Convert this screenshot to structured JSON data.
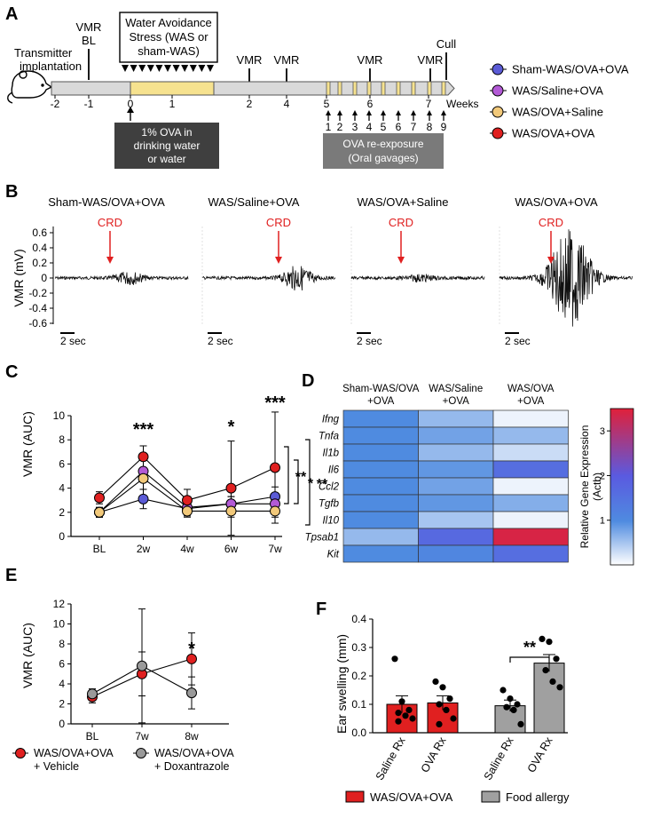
{
  "colors": {
    "sham": "#5b5bd6",
    "saline": "#b35ad6",
    "wassal": "#f2c97a",
    "wasova": "#e02020",
    "vehicle": "#e02020",
    "dox": "#9a9a9a",
    "crd": "#e02020",
    "food": "#a0a0a0",
    "timeline_fill": "#d9d9d9",
    "timeline_ova": "#f6e28f",
    "box_dark": "#3f3f3f",
    "box_grey": "#7a7a7a"
  },
  "panel_labels": {
    "a": "A",
    "b": "B",
    "c": "C",
    "d": "D",
    "e": "E",
    "f": "F"
  },
  "panel_a": {
    "transmitter": [
      "Transmitter",
      "implantation"
    ],
    "vmr_bl": [
      "VMR",
      "BL"
    ],
    "was_box": [
      "Water Avoidance",
      "Stress (WAS or",
      "sham-WAS)"
    ],
    "vmr_marks": [
      {
        "week": 2,
        "label": "VMR"
      },
      {
        "week": 4,
        "label": "VMR"
      },
      {
        "week": 6,
        "label": "VMR"
      },
      {
        "week": 7,
        "label": "VMR"
      }
    ],
    "cull": "Cull",
    "week_ticks": [
      "-2",
      "-1",
      "0",
      "1",
      "2",
      "4",
      "5",
      "6",
      "7"
    ],
    "weeks_label": "Weeks",
    "gavage_numbers": [
      "1",
      "2",
      "3",
      "4",
      "5",
      "6",
      "7",
      "8",
      "9"
    ],
    "ova_drinking": [
      "1% OVA in",
      "drinking water",
      "or water"
    ],
    "ova_reexposure": [
      "OVA re-exposure",
      "(Oral gavages)"
    ],
    "legend": [
      {
        "key": "sham",
        "label": "Sham-WAS/OVA+OVA"
      },
      {
        "key": "saline",
        "label": "WAS/Saline+OVA"
      },
      {
        "key": "wassal",
        "label": "WAS/OVA+Saline"
      },
      {
        "key": "wasova",
        "label": "WAS/OVA+OVA"
      }
    ]
  },
  "panel_b": {
    "traces": [
      {
        "title": "Sham-WAS/OVA+OVA",
        "crd": "CRD",
        "scale": "2 sec",
        "response_amp": 0.08
      },
      {
        "title": "WAS/Saline+OVA",
        "crd": "CRD",
        "scale": "2 sec",
        "response_amp": 0.16
      },
      {
        "title": "WAS/OVA+Saline",
        "crd": "CRD",
        "scale": "2 sec",
        "response_amp": 0.04
      },
      {
        "title": "WAS/OVA+OVA",
        "crd": "CRD",
        "scale": "2 sec",
        "response_amp": 0.65
      }
    ],
    "ylabel": "VMR (mV)",
    "yticks": [
      "0.6",
      "0.4",
      "0.2",
      "0",
      "-0.2",
      "-0.4",
      "-0.6"
    ]
  },
  "chart_data": [
    {
      "type": "line",
      "panel": "C",
      "x": [
        "BL",
        "2w",
        "4w",
        "6w",
        "7w"
      ],
      "ylabel": "VMR (AUC)",
      "ylim": [
        0,
        10
      ],
      "yticks": [
        "0",
        "2",
        "4",
        "6",
        "8",
        "10"
      ],
      "series": [
        {
          "name": "Sham-WAS/OVA+OVA",
          "key": "sham",
          "values": [
            2.0,
            3.1,
            2.3,
            2.7,
            3.3
          ],
          "err": [
            0.4,
            0.8,
            0.6,
            0.6,
            0.8
          ]
        },
        {
          "name": "WAS/Saline+OVA",
          "key": "saline",
          "values": [
            2.0,
            5.4,
            2.4,
            2.7,
            2.7
          ],
          "err": [
            0.4,
            0.9,
            0.6,
            0.6,
            0.7
          ]
        },
        {
          "name": "WAS/OVA+Saline",
          "key": "wassal",
          "values": [
            2.0,
            4.8,
            2.1,
            2.1,
            2.1
          ],
          "err": [
            0.4,
            0.9,
            0.5,
            0.5,
            0.5
          ]
        },
        {
          "name": "WAS/OVA+OVA",
          "key": "wasova",
          "values": [
            3.2,
            6.6,
            3.0,
            4.0,
            5.7
          ],
          "err": [
            0.5,
            0.9,
            0.9,
            3.9,
            4.6
          ]
        }
      ],
      "annotations": [
        {
          "x": "2w",
          "text": "***"
        },
        {
          "x": "6w",
          "text": "*"
        },
        {
          "x": "7w",
          "text": "***"
        }
      ],
      "brackets": [
        "**",
        "*",
        "**"
      ]
    },
    {
      "type": "heatmap",
      "panel": "D",
      "columns": [
        "Sham-WAS/OVA\n+OVA",
        "WAS/Saline\n+OVA",
        "WAS/OVA\n+OVA"
      ],
      "rows": [
        "Ifng",
        "Tnfa",
        "Il1b",
        "Il6",
        "Ccl2",
        "Tgfb",
        "Il10",
        "Tpsab1",
        "Kit"
      ],
      "values": [
        [
          1.0,
          0.6,
          0.1
        ],
        [
          1.0,
          0.8,
          0.6
        ],
        [
          1.0,
          0.6,
          0.3
        ],
        [
          1.0,
          0.9,
          1.6
        ],
        [
          1.0,
          0.8,
          0.1
        ],
        [
          1.0,
          0.9,
          0.7
        ],
        [
          1.0,
          0.5,
          0.1
        ],
        [
          0.6,
          1.7,
          3.4
        ],
        [
          1.0,
          1.1,
          1.6
        ]
      ],
      "colorbar_label": [
        "Relative Gene Expression",
        "(Actb)"
      ],
      "colorbar_ticks": [
        "1",
        "2",
        "3"
      ],
      "range": [
        0,
        3.5
      ]
    },
    {
      "type": "line",
      "panel": "E",
      "x": [
        "BL",
        "7w",
        "8w"
      ],
      "ylabel": "VMR (AUC)",
      "ylim": [
        0,
        12
      ],
      "yticks": [
        "0",
        "2",
        "4",
        "6",
        "8",
        "10",
        "12"
      ],
      "series": [
        {
          "name": "WAS/OVA+OVA + Vehicle",
          "key": "vehicle",
          "values": [
            2.7,
            5.0,
            6.5
          ],
          "err": [
            0.6,
            2.2,
            2.6
          ]
        },
        {
          "name": "WAS/OVA+OVA + Doxantrazole",
          "key": "dox",
          "values": [
            3.0,
            5.8,
            3.1
          ],
          "err": [
            0.5,
            5.7,
            1.6
          ]
        }
      ],
      "annotations": [
        {
          "x": "8w",
          "text": "*"
        }
      ],
      "legend": [
        {
          "key": "vehicle",
          "label": [
            "WAS/OVA+OVA",
            "+ Vehicle"
          ]
        },
        {
          "key": "dox",
          "label": [
            "WAS/OVA+OVA",
            "+ Doxantrazole"
          ]
        }
      ]
    },
    {
      "type": "bar",
      "panel": "F",
      "categories": [
        "Saline Rx",
        "OVA Rx",
        "Saline Rx",
        "OVA Rx"
      ],
      "groups": [
        "wasova",
        "wasova",
        "food",
        "food"
      ],
      "values": [
        0.1,
        0.105,
        0.095,
        0.245
      ],
      "err": [
        0.03,
        0.025,
        0.02,
        0.03
      ],
      "points": [
        [
          0.26,
          0.11,
          0.08,
          0.07,
          0.06,
          0.05,
          0.04
        ],
        [
          0.18,
          0.16,
          0.12,
          0.1,
          0.08,
          0.05,
          0.03
        ],
        [
          0.15,
          0.12,
          0.1,
          0.09,
          0.08,
          0.03
        ],
        [
          0.33,
          0.32,
          0.26,
          0.22,
          0.18,
          0.16
        ]
      ],
      "ylabel": "Ear swelling (mm)",
      "ylim": [
        0,
        0.4
      ],
      "yticks": [
        "0.0",
        "0.1",
        "0.2",
        "0.3",
        "0.4"
      ],
      "annotation": "**",
      "legend": [
        {
          "key": "wasova",
          "label": "WAS/OVA+OVA"
        },
        {
          "key": "food",
          "label": "Food allergy"
        }
      ]
    }
  ]
}
